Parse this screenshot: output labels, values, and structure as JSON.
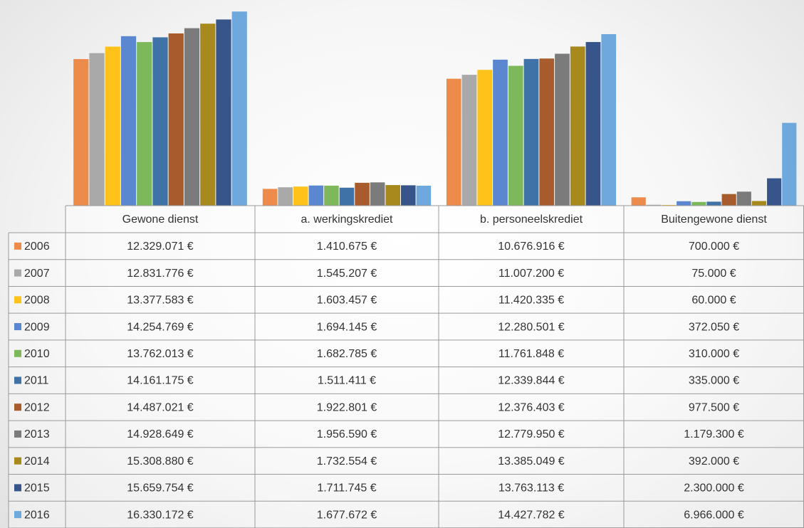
{
  "chart_data": {
    "type": "bar",
    "categories": [
      "Gewone dienst",
      "a. werkingskrediet",
      "b. personeelskrediet",
      "Buitengewone dienst"
    ],
    "ylim": [
      0,
      17000000
    ],
    "series": [
      {
        "name": "2006",
        "color": "#ed8b4a",
        "values": [
          12329071,
          1410675,
          10676916,
          700000
        ],
        "value_labels": [
          "12.329.071 €",
          "1.410.675 €",
          "10.676.916 €",
          "700.000 €"
        ]
      },
      {
        "name": "2007",
        "color": "#a9a9a9",
        "values": [
          12831776,
          1545207,
          11007200,
          75000
        ],
        "value_labels": [
          "12.831.776 €",
          "1.545.207 €",
          "11.007.200 €",
          "75.000 €"
        ]
      },
      {
        "name": "2008",
        "color": "#ffc21a",
        "values": [
          13377583,
          1603457,
          11420335,
          60000
        ],
        "value_labels": [
          "13.377.583 €",
          "1.603.457 €",
          "11.420.335 €",
          "60.000 €"
        ]
      },
      {
        "name": "2009",
        "color": "#5b87d0",
        "values": [
          14254769,
          1694145,
          12280501,
          372050
        ],
        "value_labels": [
          "14.254.769 €",
          "1.694.145 €",
          "12.280.501 €",
          "372.050 €"
        ]
      },
      {
        "name": "2010",
        "color": "#7db85a",
        "values": [
          13762013,
          1682785,
          11761848,
          310000
        ],
        "value_labels": [
          "13.762.013 €",
          "1.682.785 €",
          "11.761.848 €",
          "310.000 €"
        ]
      },
      {
        "name": "2011",
        "color": "#3f72a6",
        "values": [
          14161175,
          1511411,
          12339844,
          335000
        ],
        "value_labels": [
          "14.161.175 €",
          "1.511.411 €",
          "12.339.844 €",
          "335.000 €"
        ]
      },
      {
        "name": "2012",
        "color": "#a85b2c",
        "values": [
          14487021,
          1922801,
          12376403,
          977500
        ],
        "value_labels": [
          "14.487.021 €",
          "1.922.801 €",
          "12.376.403 €",
          "977.500 €"
        ]
      },
      {
        "name": "2013",
        "color": "#7b7b7b",
        "values": [
          14928649,
          1956590,
          12779950,
          1179300
        ],
        "value_labels": [
          "14.928.649 €",
          "1.956.590 €",
          "12.779.950 €",
          "1.179.300 €"
        ]
      },
      {
        "name": "2014",
        "color": "#a8891e",
        "values": [
          15308880,
          1732554,
          13385049,
          392000
        ],
        "value_labels": [
          "15.308.880 €",
          "1.732.554 €",
          "13.385.049 €",
          "392.000 €"
        ]
      },
      {
        "name": "2015",
        "color": "#37558a",
        "values": [
          15659754,
          1711745,
          13763113,
          2300000
        ],
        "value_labels": [
          "15.659.754 €",
          "1.711.745 €",
          "13.763.113 €",
          "2.300.000 €"
        ]
      },
      {
        "name": "2016",
        "color": "#6fa8dc",
        "values": [
          16330172,
          1677672,
          14427782,
          6966000
        ],
        "value_labels": [
          "16.330.172 €",
          "1.677.672 €",
          "14.427.782 €",
          "6.966.000 €"
        ]
      }
    ]
  }
}
